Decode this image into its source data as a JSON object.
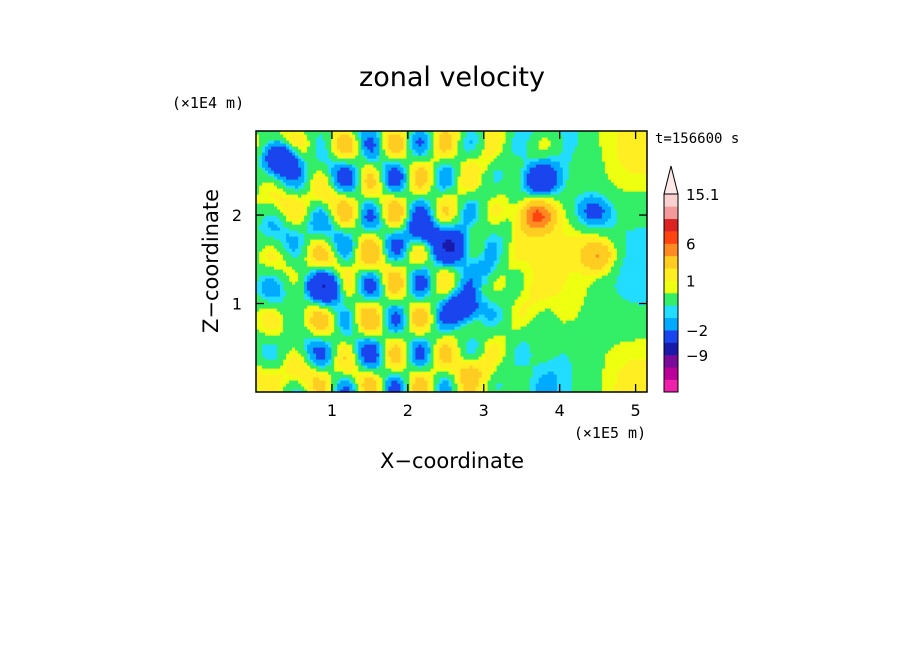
{
  "chart_data": {
    "type": "heatmap",
    "title": "zonal velocity",
    "xlabel": "X−coordinate",
    "ylabel": "Z−coordinate",
    "x_scale_label": "(×1E5 m)",
    "y_scale_label": "(×1E4 m)",
    "time_label": "t=156600 s",
    "xlim": [
      0,
      5.15
    ],
    "ylim": [
      0,
      2.95
    ],
    "x_ticks": [
      1,
      2,
      3,
      4,
      5
    ],
    "y_ticks": [
      1,
      2
    ],
    "colorbar": {
      "levels": [
        -15,
        -12,
        -9,
        -6,
        -2,
        -1,
        -0.5,
        0.5,
        1,
        2,
        4,
        6,
        9,
        12,
        15.1
      ],
      "colors": [
        "#ee22aa",
        "#bb0099",
        "#7a0a99",
        "#1a1aaa",
        "#1a44ee",
        "#00aaff",
        "#22ddff",
        "#33ee66",
        "#eeff11",
        "#ffee22",
        "#ffcc22",
        "#ff8a22",
        "#ff4411",
        "#dd2222",
        "#f59a9a",
        "#fad0d0"
      ],
      "tick_labels": [
        "15.1",
        "6",
        "1",
        "−2",
        "−9"
      ],
      "tick_values": [
        15.1,
        6,
        1,
        -2,
        -9
      ],
      "extend_max": true
    },
    "field_summary": {
      "background": 0.2,
      "blobs": [
        {
          "x": 0.35,
          "z": 2.65,
          "u": -6
        },
        {
          "x": 3.75,
          "z": 2.4,
          "u": -4
        },
        {
          "x": 4.45,
          "z": 2.05,
          "u": -3
        },
        {
          "x": 3.7,
          "z": 2.0,
          "u": 6
        },
        {
          "x": 4.5,
          "z": 1.55,
          "u": 4
        },
        {
          "x": 3.05,
          "z": 1.4,
          "u": -1
        },
        {
          "x": 3.8,
          "z": 2.8,
          "u": 1.5
        },
        {
          "x": 2.6,
          "z": 1.65,
          "u": -5
        },
        {
          "x": 2.2,
          "z": 1.8,
          "u": -4
        },
        {
          "x": 0.95,
          "z": 1.2,
          "u": -4
        },
        {
          "x": 2.75,
          "z": 0.95,
          "u": -5
        },
        {
          "x": 2.8,
          "z": 0.25,
          "u": 2
        }
      ]
    }
  }
}
